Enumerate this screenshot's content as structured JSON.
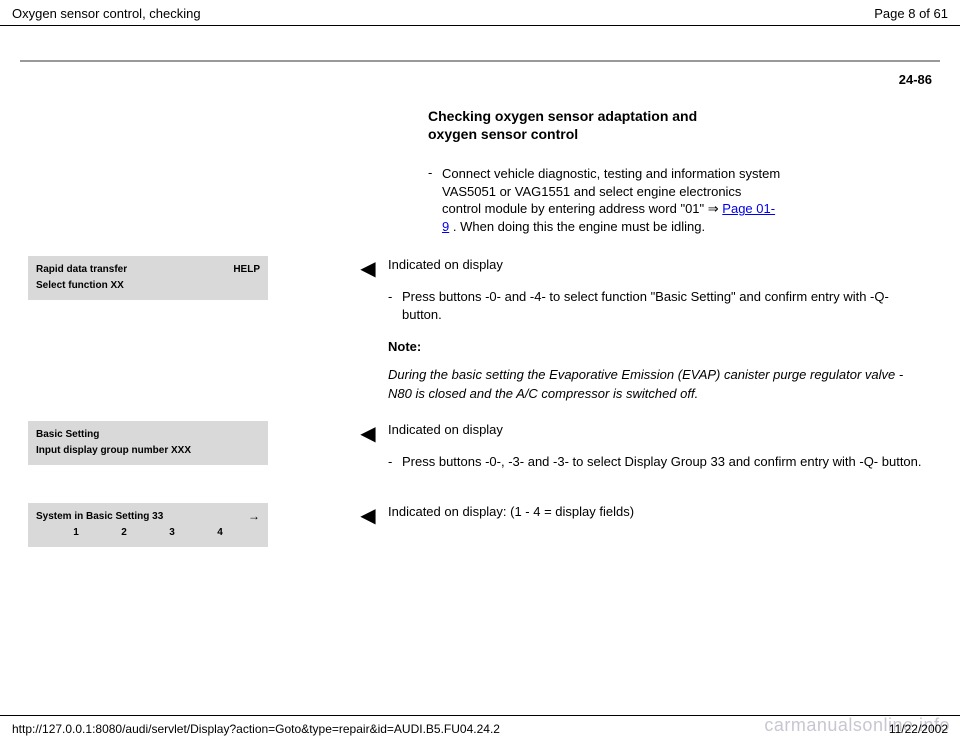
{
  "header": {
    "title": "Oxygen sensor control, checking",
    "page_of": "Page 8 of 61"
  },
  "doc_page_number": "24-86",
  "section_heading_line1": "Checking oxygen sensor adaptation and",
  "section_heading_line2": "oxygen sensor control",
  "step1": {
    "pre": "Connect vehicle diagnostic, testing and information system VAS5051 or VAG1551 and select engine electronics control module by entering address word \"01\" ",
    "link": "Page 01-9",
    "post": " . When doing this the engine must be idling."
  },
  "display1": {
    "line1_left": "Rapid data transfer",
    "line1_right": "HELP",
    "line2": "Select function XX"
  },
  "block1": {
    "indicated": "Indicated on display",
    "bullet": "Press buttons -0- and -4- to select function \"Basic Setting\" and confirm entry with -Q- button.",
    "note_label": "Note:",
    "note_body": "During the basic setting the Evaporative Emission (EVAP) canister purge regulator valve -N80 is closed and the A/C compressor is switched off."
  },
  "display2": {
    "line1": "Basic Setting",
    "line2": "Input display group number XXX"
  },
  "block2": {
    "indicated": "Indicated on display",
    "bullet": "Press buttons -0-, -3- and -3- to select Display Group 33 and confirm entry with -Q- button."
  },
  "display3": {
    "line1": "System in Basic Setting 33",
    "fields": [
      "1",
      "2",
      "3",
      "4"
    ]
  },
  "block3": {
    "indicated": "Indicated on display: (1 - 4  =  display fields)"
  },
  "footer": {
    "url": "http://127.0.0.1:8080/audi/servlet/Display?action=Goto&type=repair&id=AUDI.B5.FU04.24.2",
    "date": "11/22/2002"
  },
  "watermark": "carmanualsonline.info",
  "colors": {
    "bg": "#ffffff",
    "text": "#000000",
    "boxbg": "#d9d9d9",
    "link": "#0000ee",
    "rule": "#999999",
    "watermark": "#c7c7d1"
  }
}
